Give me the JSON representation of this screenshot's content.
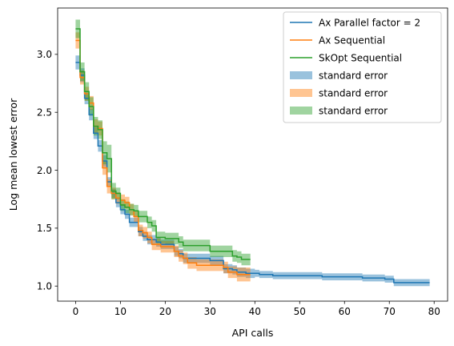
{
  "chart_data": {
    "type": "line",
    "xlabel": "API calls",
    "ylabel": "Log mean lowest error",
    "xlim": [
      -4,
      83
    ],
    "ylim": [
      0.87,
      3.4
    ],
    "xticks": [
      0,
      10,
      20,
      30,
      40,
      50,
      60,
      70,
      80
    ],
    "yticks": [
      1.0,
      1.5,
      2.0,
      2.5,
      3.0
    ],
    "xtick_labels": [
      "0",
      "10",
      "20",
      "30",
      "40",
      "50",
      "60",
      "70",
      "80"
    ],
    "ytick_labels": [
      "1.0",
      "1.5",
      "2.0",
      "2.5",
      "3.0"
    ],
    "grid": false,
    "legend_position": "upper right",
    "series": [
      {
        "name": "Ax Parallel factor = 2",
        "color": "#1f77b4",
        "x": [
          0,
          1,
          2,
          3,
          4,
          5,
          6,
          7,
          8,
          9,
          10,
          11,
          12,
          13,
          14,
          15,
          16,
          17,
          18,
          19,
          20,
          21,
          22,
          23,
          24,
          25,
          26,
          27,
          28,
          29,
          30,
          31,
          32,
          33,
          34,
          35,
          36,
          37,
          38,
          39,
          40,
          41,
          42,
          43,
          44,
          45,
          46,
          47,
          48,
          49,
          50,
          51,
          52,
          53,
          54,
          55,
          56,
          57,
          58,
          59,
          60,
          61,
          62,
          63,
          64,
          65,
          66,
          67,
          68,
          69,
          70,
          71,
          72,
          73,
          74,
          75,
          76,
          77,
          78,
          79
        ],
        "y": [
          2.93,
          2.82,
          2.62,
          2.48,
          2.32,
          2.21,
          2.08,
          1.9,
          1.8,
          1.72,
          1.66,
          1.62,
          1.55,
          1.55,
          1.47,
          1.43,
          1.4,
          1.4,
          1.38,
          1.36,
          1.36,
          1.36,
          1.3,
          1.28,
          1.24,
          1.24,
          1.24,
          1.24,
          1.24,
          1.24,
          1.22,
          1.22,
          1.22,
          1.15,
          1.15,
          1.14,
          1.12,
          1.12,
          1.11,
          1.11,
          1.11,
          1.1,
          1.1,
          1.1,
          1.09,
          1.09,
          1.09,
          1.09,
          1.09,
          1.09,
          1.09,
          1.09,
          1.09,
          1.09,
          1.09,
          1.08,
          1.08,
          1.08,
          1.08,
          1.08,
          1.08,
          1.08,
          1.08,
          1.08,
          1.07,
          1.07,
          1.07,
          1.07,
          1.07,
          1.06,
          1.06,
          1.03,
          1.03,
          1.03,
          1.03,
          1.03,
          1.03,
          1.03,
          1.03,
          1.03
        ],
        "stderr": [
          0.06,
          0.06,
          0.05,
          0.05,
          0.05,
          0.05,
          0.05,
          0.04,
          0.04,
          0.04,
          0.04,
          0.04,
          0.04,
          0.04,
          0.04,
          0.04,
          0.04,
          0.04,
          0.04,
          0.04,
          0.04,
          0.04,
          0.04,
          0.04,
          0.04,
          0.04,
          0.04,
          0.04,
          0.04,
          0.04,
          0.04,
          0.04,
          0.04,
          0.04,
          0.04,
          0.04,
          0.04,
          0.04,
          0.04,
          0.04,
          0.03,
          0.03,
          0.03,
          0.03,
          0.03,
          0.03,
          0.03,
          0.03,
          0.03,
          0.03,
          0.03,
          0.03,
          0.03,
          0.03,
          0.03,
          0.03,
          0.03,
          0.03,
          0.03,
          0.03,
          0.03,
          0.03,
          0.03,
          0.03,
          0.03,
          0.03,
          0.03,
          0.03,
          0.03,
          0.03,
          0.03,
          0.03,
          0.03,
          0.03,
          0.03,
          0.03,
          0.03,
          0.03,
          0.03,
          0.03
        ]
      },
      {
        "name": "Ax Sequential",
        "color": "#ff7f0e",
        "x": [
          0,
          1,
          2,
          3,
          4,
          5,
          6,
          7,
          8,
          9,
          10,
          11,
          12,
          13,
          14,
          15,
          16,
          17,
          18,
          19,
          20,
          21,
          22,
          23,
          24,
          25,
          26,
          27,
          28,
          29,
          30,
          31,
          32,
          33,
          34,
          35,
          36,
          37,
          38,
          39
        ],
        "y": [
          3.12,
          2.8,
          2.66,
          2.58,
          2.38,
          2.36,
          2.02,
          1.86,
          1.8,
          1.76,
          1.74,
          1.72,
          1.66,
          1.6,
          1.48,
          1.46,
          1.42,
          1.36,
          1.36,
          1.34,
          1.34,
          1.34,
          1.3,
          1.26,
          1.24,
          1.2,
          1.2,
          1.18,
          1.18,
          1.18,
          1.18,
          1.18,
          1.18,
          1.16,
          1.12,
          1.12,
          1.1,
          1.1,
          1.1,
          1.1
        ],
        "stderr": [
          0.07,
          0.06,
          0.06,
          0.06,
          0.06,
          0.06,
          0.06,
          0.06,
          0.05,
          0.05,
          0.05,
          0.05,
          0.05,
          0.05,
          0.05,
          0.05,
          0.05,
          0.05,
          0.05,
          0.05,
          0.05,
          0.05,
          0.05,
          0.05,
          0.05,
          0.05,
          0.05,
          0.05,
          0.05,
          0.05,
          0.05,
          0.05,
          0.05,
          0.05,
          0.05,
          0.05,
          0.06,
          0.06,
          0.06,
          0.06
        ]
      },
      {
        "name": "SkOpt Sequential",
        "color": "#2ca02c",
        "x": [
          0,
          1,
          2,
          3,
          4,
          5,
          6,
          7,
          8,
          9,
          10,
          11,
          12,
          13,
          14,
          15,
          16,
          17,
          18,
          19,
          20,
          21,
          22,
          23,
          24,
          25,
          26,
          27,
          28,
          29,
          30,
          31,
          32,
          33,
          34,
          35,
          36,
          37,
          38,
          39
        ],
        "y": [
          3.22,
          2.85,
          2.68,
          2.55,
          2.38,
          2.35,
          2.15,
          2.1,
          1.82,
          1.8,
          1.7,
          1.68,
          1.66,
          1.65,
          1.6,
          1.6,
          1.55,
          1.52,
          1.42,
          1.42,
          1.41,
          1.41,
          1.41,
          1.38,
          1.35,
          1.35,
          1.35,
          1.35,
          1.35,
          1.35,
          1.3,
          1.3,
          1.3,
          1.3,
          1.3,
          1.26,
          1.25,
          1.23,
          1.23,
          1.23
        ],
        "stderr": [
          0.08,
          0.08,
          0.08,
          0.08,
          0.08,
          0.08,
          0.1,
          0.12,
          0.07,
          0.05,
          0.05,
          0.05,
          0.05,
          0.05,
          0.05,
          0.05,
          0.05,
          0.05,
          0.05,
          0.05,
          0.05,
          0.05,
          0.05,
          0.05,
          0.05,
          0.05,
          0.05,
          0.05,
          0.05,
          0.05,
          0.05,
          0.05,
          0.05,
          0.05,
          0.05,
          0.05,
          0.05,
          0.05,
          0.05,
          0.05
        ]
      }
    ],
    "legend": [
      {
        "label": "Ax Parallel factor = 2",
        "kind": "line",
        "color": "#1f77b4"
      },
      {
        "label": "Ax Sequential",
        "kind": "line",
        "color": "#ff7f0e"
      },
      {
        "label": "SkOpt Sequential",
        "kind": "line",
        "color": "#2ca02c"
      },
      {
        "label": "standard error",
        "kind": "patch",
        "color": "#1f77b4"
      },
      {
        "label": "standard error",
        "kind": "patch",
        "color": "#ff7f0e"
      },
      {
        "label": "standard error",
        "kind": "patch",
        "color": "#2ca02c"
      }
    ]
  }
}
